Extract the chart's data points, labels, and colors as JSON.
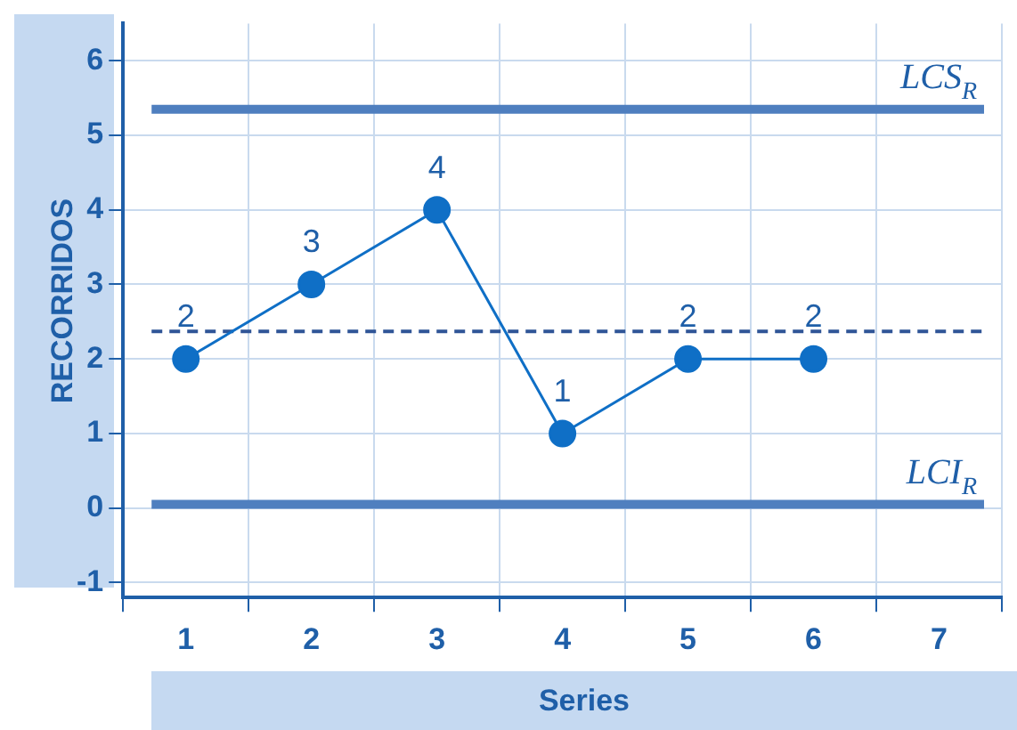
{
  "chart_data": {
    "type": "line",
    "xlabel": "Series",
    "ylabel": "RECORRIDOS",
    "categories": [
      "1",
      "2",
      "3",
      "4",
      "5",
      "6",
      "7"
    ],
    "series": [
      {
        "color": "#0f6fc6",
        "values": [
          2,
          3,
          4,
          1,
          2,
          2,
          null
        ]
      }
    ],
    "ylim": [
      -1.2,
      6.5
    ],
    "yticks": [
      -1,
      0,
      1,
      2,
      3,
      4,
      5,
      6
    ],
    "grid": true,
    "marker": "circle",
    "line_style": "solid",
    "data_labels": true,
    "legend": false,
    "ref_lines": [
      {
        "axis": "y",
        "value": 5.35,
        "label": "LCS$_{R}$",
        "color": "#4f7fbf",
        "line_style": "solid"
      },
      {
        "axis": "y",
        "value": 2.37,
        "label": null,
        "color": "#2f5597",
        "line_style": "dashed"
      },
      {
        "axis": "y",
        "value": 0.05,
        "label": "LCI$_{R}$",
        "color": "#4f7fbf",
        "line_style": "solid"
      }
    ]
  }
}
